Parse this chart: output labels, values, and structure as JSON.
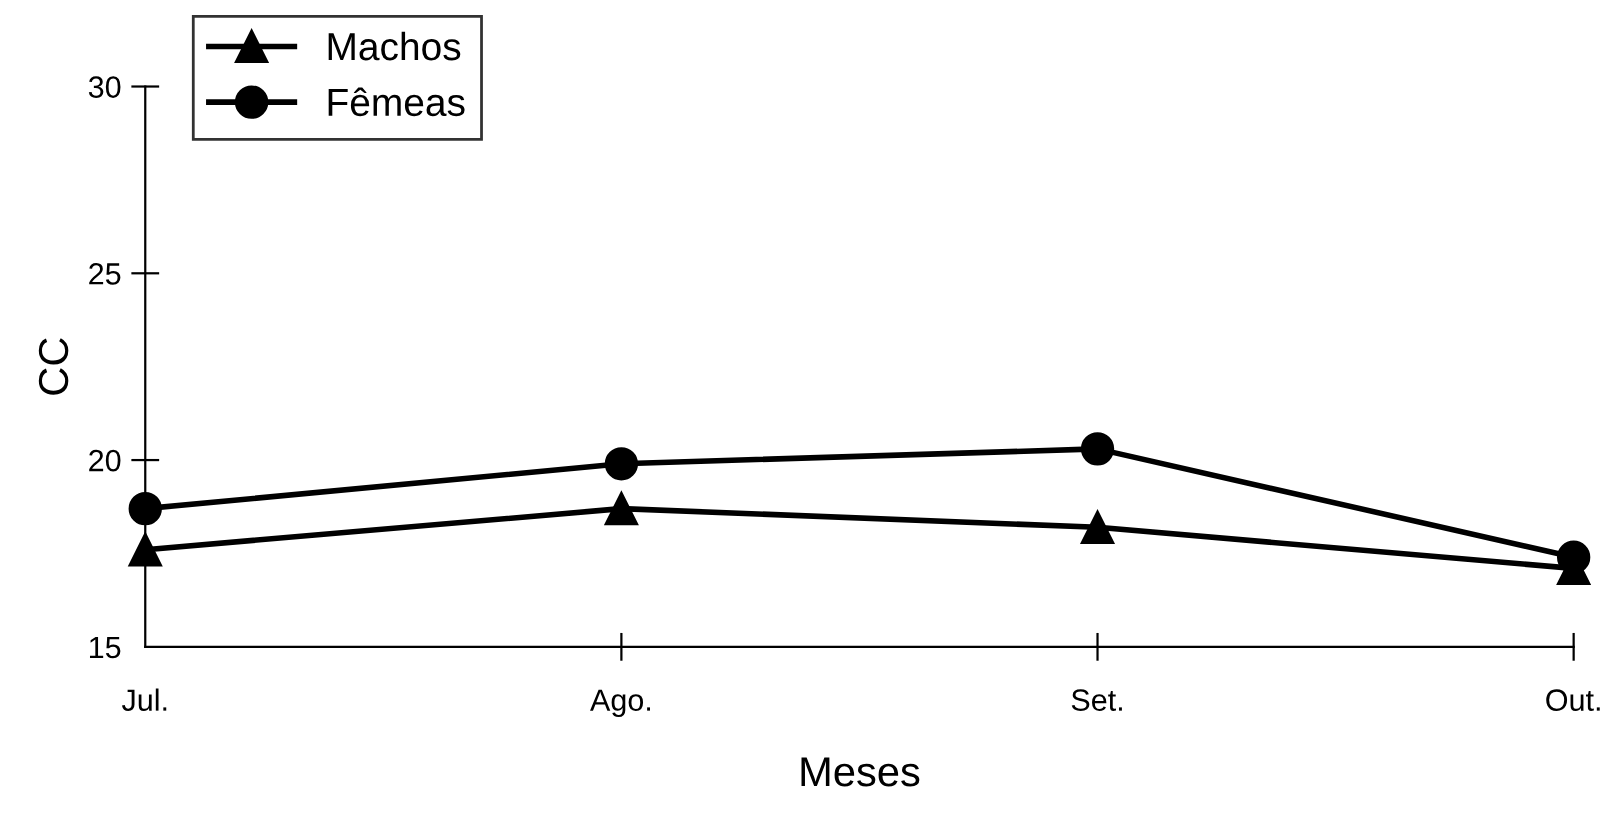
{
  "chart_data": {
    "type": "line",
    "xlabel": "Meses",
    "ylabel": "CC",
    "categories": [
      "Jul.",
      "Ago.",
      "Set.",
      "Out."
    ],
    "series": [
      {
        "name": "Machos",
        "color": "#000000",
        "marker": "triangle",
        "values": [
          17.6,
          18.7,
          18.2,
          17.1
        ]
      },
      {
        "name": "Fêmeas",
        "color": "#000000",
        "marker": "circle",
        "values": [
          18.7,
          19.9,
          20.3,
          17.4
        ]
      }
    ],
    "ylim": [
      15,
      30
    ],
    "yticks": [
      15,
      20,
      25,
      30
    ],
    "grid": false,
    "legend": "top left",
    "line_style": "solid"
  }
}
